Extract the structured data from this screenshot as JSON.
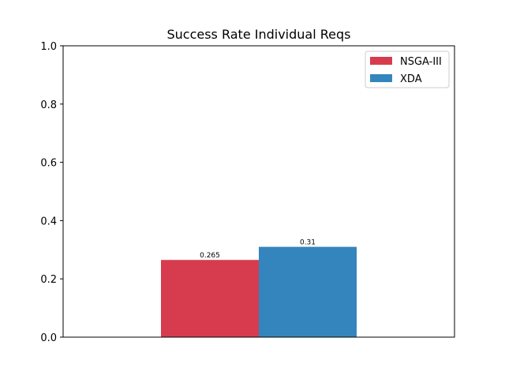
{
  "chart_data": {
    "type": "bar",
    "title": "Success Rate Individual Reqs",
    "xlabel": "",
    "ylabel": "",
    "ylim": [
      0,
      1.0
    ],
    "yticks": [
      "0.0",
      "0.2",
      "0.4",
      "0.6",
      "0.8",
      "1.0"
    ],
    "grid": false,
    "legend_position": "top-right",
    "series": [
      {
        "name": "NSGA-III",
        "values": [
          0.265
        ],
        "label": "0.265",
        "color": "#d63c4e"
      },
      {
        "name": "XDA",
        "values": [
          0.31
        ],
        "label": "0.31",
        "color": "#3485bd"
      }
    ]
  }
}
